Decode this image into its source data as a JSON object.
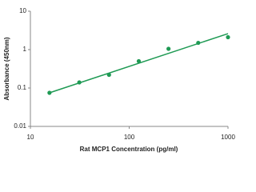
{
  "chart_data": {
    "type": "scatter",
    "x_label": "Rat MCP1  Concentration (pg/ml)",
    "y_label": "Absorbance (450nm)",
    "x": [
      15.6,
      31.25,
      62.5,
      125,
      250,
      500,
      1000
    ],
    "values": [
      0.075,
      0.14,
      0.22,
      0.5,
      1.05,
      1.5,
      2.1
    ],
    "color": "#1f9a54",
    "fit": {
      "x": [
        15.6,
        1000
      ],
      "values": [
        0.075,
        2.6
      ]
    },
    "x_log": true,
    "y_log": true,
    "xlim": [
      10,
      1000
    ],
    "xticks": [
      10,
      100,
      1000
    ],
    "ylim": [
      0.01,
      10
    ],
    "yticks": [
      0.01,
      0.1,
      1,
      10
    ]
  }
}
